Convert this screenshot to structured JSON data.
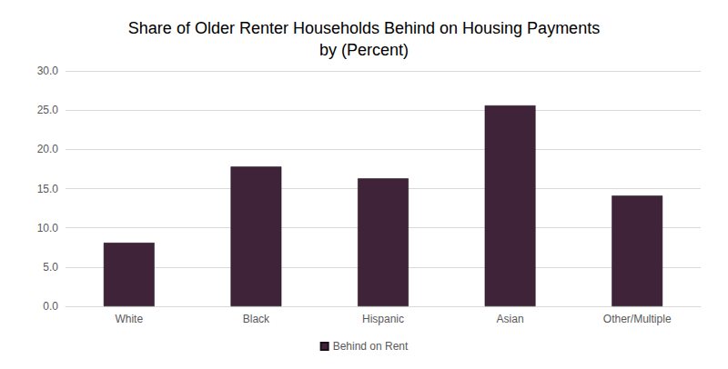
{
  "chart_data": {
    "type": "bar",
    "title": "Share of Older Renter Households Behind on Housing Payments\nby (Percent)",
    "categories": [
      "White",
      "Black",
      "Hispanic",
      "Asian",
      "Other/Multiple"
    ],
    "series": [
      {
        "name": "Behind on Rent",
        "color": "#3f2339",
        "values": [
          8.1,
          17.8,
          16.3,
          25.6,
          14.1
        ]
      }
    ],
    "ylim": [
      0,
      30
    ],
    "yticks": [
      {
        "value": 0,
        "label": "0.0"
      },
      {
        "value": 5,
        "label": "5.0"
      },
      {
        "value": 10,
        "label": "10.0"
      },
      {
        "value": 15,
        "label": "15.0"
      },
      {
        "value": 20,
        "label": "20.0"
      },
      {
        "value": 25,
        "label": "25.0"
      },
      {
        "value": 30,
        "label": "30.0"
      }
    ],
    "grid": true,
    "legend": "bottom"
  }
}
